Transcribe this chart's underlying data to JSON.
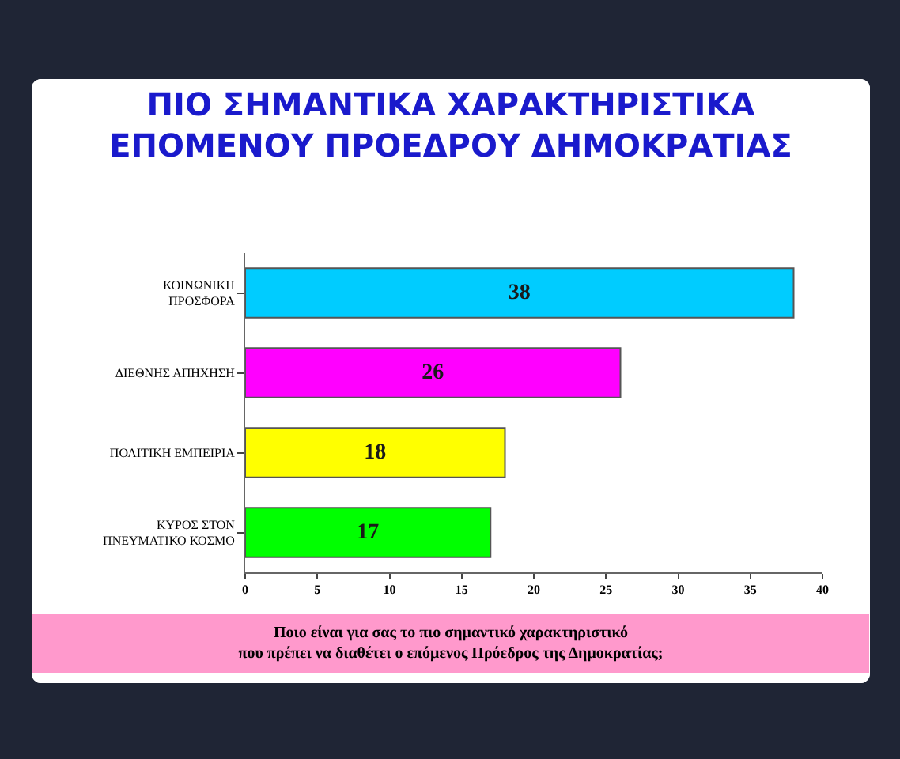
{
  "chart_data": {
    "type": "bar",
    "orientation": "horizontal",
    "title": "ΠΙΟ ΣΗΜΑΝΤΙΚΑ ΧΑΡΑΚΤΗΡΙΣΤΙΚΑ ΕΠΟΜΕΝΟΥ ΠΡΟΕΔΡΟΥ ΔΗΜΟΚΡΑΤΙΑΣ",
    "categories": [
      "ΚΟΙΝΩΝΙΚΗ ΠΡΟΣΦΟΡΑ",
      "ΔΙΕΘΝΗΣ ΑΠΗΧΗΣΗ",
      "ΠΟΛΙΤΙΚΗ ΕΜΠΕΙΡΙΑ",
      "ΚΥΡΟΣ ΣΤΟΝ ΠΝΕΥΜΑΤΙΚΟ ΚΟΣΜΟ"
    ],
    "values": [
      38,
      26,
      18,
      17
    ],
    "colors": [
      "#00ccff",
      "#ff00ff",
      "#ffff00",
      "#00ff00"
    ],
    "xlim": [
      0,
      40
    ],
    "xticks": [
      0,
      5,
      10,
      15,
      20,
      25,
      30,
      35,
      40
    ],
    "data_labels": true,
    "grid": false,
    "annotations": [
      "Ποιο είναι για σας το πιο σημαντικό χαρακτηριστικό που πρέπει να διαθέτει ο επόμενος Πρόεδρος της Δημοκρατίας;"
    ]
  }
}
